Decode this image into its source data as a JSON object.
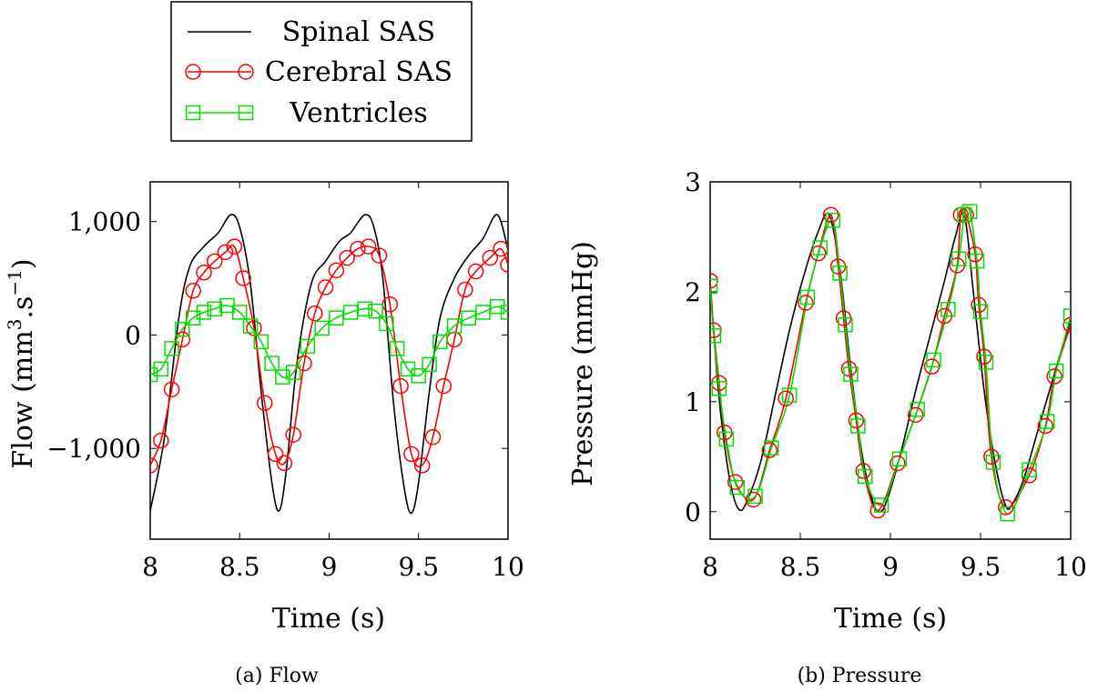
{
  "legend": {
    "entries": [
      {
        "label": "Spinal SAS",
        "color": "#000000",
        "marker": "none"
      },
      {
        "label": "Cerebral SAS",
        "color": "#ff0000",
        "marker": "circle"
      },
      {
        "label": "Ventricles",
        "color": "#00e000",
        "marker": "square"
      }
    ]
  },
  "chart_data": [
    {
      "type": "line",
      "caption": "(a) Flow",
      "xlabel": "Time (s)",
      "ylabel": "Flow (mm",
      "ylabel_sup1": "3",
      "ylabel_mid": ".s",
      "ylabel_sup2": "−1",
      "ylabel_end": ")",
      "xlim": [
        8,
        10
      ],
      "ylim": [
        -1800,
        1350
      ],
      "xticks": [
        8,
        8.5,
        9,
        9.5,
        10
      ],
      "xtick_labels": [
        "8",
        "8.5",
        "9",
        "9.5",
        "10"
      ],
      "yticks": [
        -1000,
        0,
        1000
      ],
      "ytick_labels": [
        "−1,000",
        "0",
        "1,000"
      ],
      "series": [
        {
          "name": "Spinal SAS",
          "color": "#000000",
          "marker": "none",
          "x": [
            8.0,
            8.08,
            8.16,
            8.22,
            8.3,
            8.38,
            8.45,
            8.5,
            8.56,
            8.62,
            8.68,
            8.72,
            8.76,
            8.82,
            8.9,
            8.98,
            9.06,
            9.12,
            9.2,
            9.25,
            9.3,
            9.36,
            9.42,
            9.46,
            9.5,
            9.56,
            9.62,
            9.7,
            9.78,
            9.86,
            9.94,
            10.0
          ],
          "y": [
            -1550,
            -900,
            150,
            600,
            780,
            900,
            1060,
            950,
            450,
            -500,
            -1300,
            -1550,
            -1200,
            -250,
            450,
            650,
            830,
            900,
            1060,
            950,
            500,
            -600,
            -1350,
            -1570,
            -1300,
            -500,
            150,
            500,
            700,
            850,
            1060,
            750
          ]
        },
        {
          "name": "Cerebral SAS",
          "color": "#ff0000",
          "marker": "circle",
          "x": [
            8.0,
            8.06,
            8.12,
            8.18,
            8.24,
            8.3,
            8.36,
            8.42,
            8.47,
            8.52,
            8.58,
            8.64,
            8.7,
            8.75,
            8.8,
            8.86,
            8.92,
            8.98,
            9.04,
            9.1,
            9.16,
            9.22,
            9.28,
            9.34,
            9.4,
            9.46,
            9.52,
            9.58,
            9.64,
            9.7,
            9.76,
            9.82,
            9.9,
            9.96,
            10.0
          ],
          "y": [
            -1150,
            -930,
            -480,
            -40,
            390,
            550,
            650,
            730,
            780,
            500,
            60,
            -600,
            -1050,
            -1130,
            -880,
            -250,
            190,
            420,
            570,
            680,
            760,
            780,
            700,
            270,
            -450,
            -1050,
            -1150,
            -900,
            -450,
            -40,
            400,
            560,
            680,
            760,
            620
          ]
        },
        {
          "name": "Ventricles",
          "color": "#00e000",
          "marker": "square",
          "x": [
            8.0,
            8.06,
            8.12,
            8.18,
            8.24,
            8.3,
            8.36,
            8.43,
            8.5,
            8.56,
            8.62,
            8.68,
            8.74,
            8.8,
            8.88,
            8.96,
            9.04,
            9.12,
            9.2,
            9.26,
            9.32,
            9.38,
            9.44,
            9.5,
            9.56,
            9.62,
            9.7,
            9.78,
            9.86,
            9.94,
            10.0
          ],
          "y": [
            -350,
            -300,
            -120,
            50,
            150,
            200,
            230,
            260,
            200,
            80,
            -60,
            -250,
            -370,
            -330,
            -100,
            60,
            150,
            200,
            230,
            210,
            100,
            -120,
            -300,
            -360,
            -260,
            -60,
            80,
            150,
            200,
            250,
            200
          ]
        }
      ]
    },
    {
      "type": "line",
      "caption": "(b) Pressure",
      "xlabel": "Time (s)",
      "ylabel": "Pressure (mmHg)",
      "xlim": [
        8,
        10
      ],
      "ylim": [
        -0.25,
        3.0
      ],
      "xticks": [
        8,
        8.5,
        9,
        9.5,
        10
      ],
      "xtick_labels": [
        "8",
        "8.5",
        "9",
        "9.5",
        "10"
      ],
      "yticks": [
        0,
        1,
        2,
        3
      ],
      "ytick_labels": [
        "0",
        "1",
        "2",
        "3"
      ],
      "series": [
        {
          "name": "Spinal SAS",
          "color": "#000000",
          "marker": "none",
          "x": [
            8.0,
            8.04,
            8.08,
            8.12,
            8.16,
            8.2,
            8.28,
            8.36,
            8.44,
            8.52,
            8.6,
            8.66,
            8.72,
            8.78,
            8.84,
            8.9,
            8.94,
            8.98,
            9.06,
            9.14,
            9.22,
            9.3,
            9.36,
            9.41,
            9.46,
            9.52,
            9.58,
            9.64,
            9.68,
            9.74,
            9.82,
            9.9,
            10.0
          ],
          "y": [
            2.1,
            1.2,
            0.6,
            0.2,
            0.02,
            0.08,
            0.45,
            1.05,
            1.65,
            2.15,
            2.55,
            2.7,
            2.2,
            1.3,
            0.55,
            0.1,
            0.0,
            0.1,
            0.55,
            1.1,
            1.6,
            2.1,
            2.5,
            2.7,
            2.0,
            1.1,
            0.45,
            0.05,
            0.08,
            0.3,
            0.75,
            1.2,
            1.75
          ]
        },
        {
          "name": "Cerebral SAS",
          "color": "#ff0000",
          "marker": "circle",
          "x": [
            8.0,
            8.02,
            8.05,
            8.08,
            8.14,
            8.24,
            8.33,
            8.42,
            8.53,
            8.6,
            8.67,
            8.71,
            8.74,
            8.77,
            8.81,
            8.85,
            8.93,
            9.04,
            9.14,
            9.23,
            9.3,
            9.37,
            9.39,
            9.42,
            9.47,
            9.49,
            9.52,
            9.56,
            9.64,
            9.77,
            9.86,
            9.91,
            10.0
          ],
          "y": [
            2.1,
            1.65,
            1.17,
            0.72,
            0.27,
            0.11,
            0.56,
            1.03,
            1.9,
            2.35,
            2.7,
            2.23,
            1.76,
            1.3,
            0.83,
            0.37,
            0.01,
            0.44,
            0.88,
            1.32,
            1.78,
            2.24,
            2.7,
            2.7,
            2.34,
            1.88,
            1.41,
            0.5,
            0.04,
            0.33,
            0.78,
            1.23,
            1.7
          ]
        },
        {
          "name": "Ventricles",
          "color": "#00e000",
          "marker": "square",
          "x": [
            8.0,
            8.02,
            8.05,
            8.09,
            8.15,
            8.25,
            8.34,
            8.44,
            8.54,
            8.61,
            8.68,
            8.72,
            8.75,
            8.78,
            8.82,
            8.86,
            8.95,
            9.05,
            9.15,
            9.24,
            9.32,
            9.38,
            9.41,
            9.44,
            9.48,
            9.5,
            9.53,
            9.57,
            9.65,
            9.77,
            9.87,
            9.92,
            10.0
          ],
          "y": [
            2.05,
            1.6,
            1.12,
            0.66,
            0.22,
            0.14,
            0.58,
            1.06,
            1.95,
            2.4,
            2.65,
            2.17,
            1.7,
            1.25,
            0.78,
            0.32,
            0.06,
            0.48,
            0.93,
            1.38,
            1.84,
            2.3,
            2.7,
            2.73,
            2.28,
            1.82,
            1.36,
            0.45,
            -0.02,
            0.38,
            0.82,
            1.28,
            1.78
          ]
        }
      ]
    }
  ]
}
